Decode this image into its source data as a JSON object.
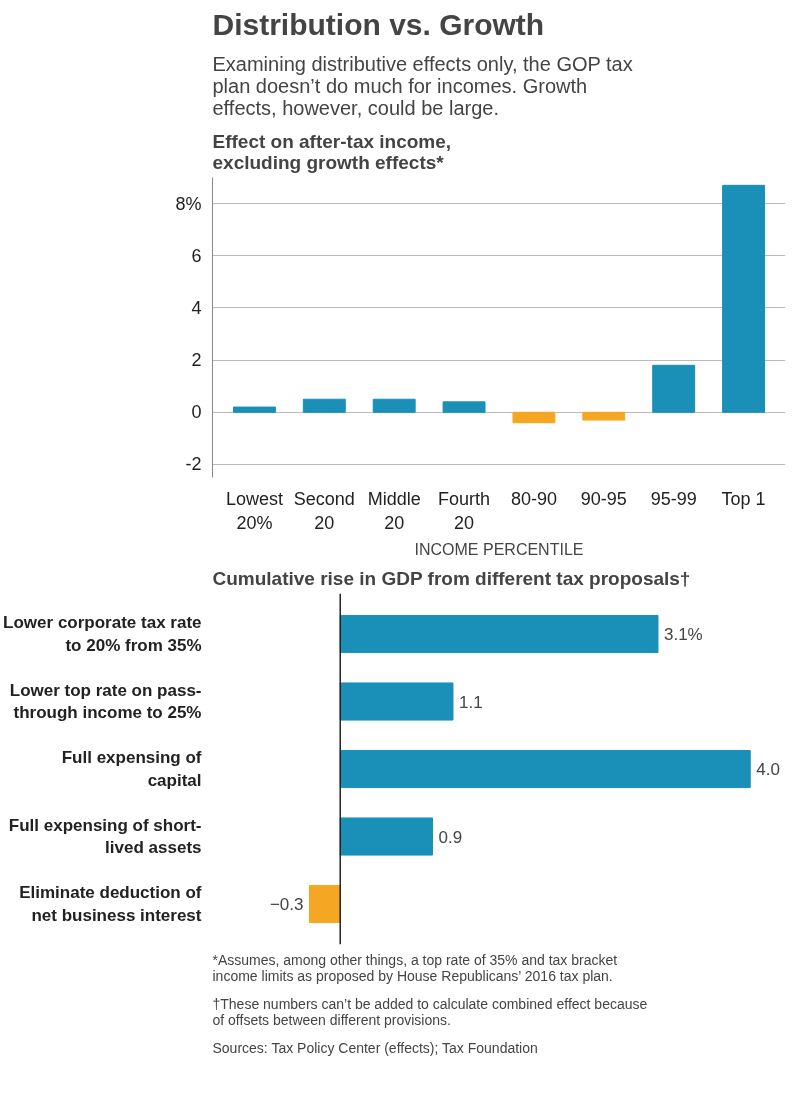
{
  "chart_data": [
    {
      "type": "bar",
      "title": "Distribution vs. Growth",
      "subtitle": "Examining distributive effects only, the GOP tax plan doesn’t do much for incomes. Growth effects, however, could be large.",
      "annotations": [
        "Effect on after-tax income, excluding growth effects*"
      ],
      "categories": [
        "Lowest 20%",
        "Second 20",
        "Middle 20",
        "Fourth 20",
        "80-90",
        "90-95",
        "95-99",
        "Top 1"
      ],
      "values": [
        0.2,
        0.5,
        0.5,
        0.4,
        -0.4,
        -0.3,
        1.8,
        8.7
      ],
      "colors": [
        "#1a8fb8",
        "#1a8fb8",
        "#1a8fb8",
        "#1a8fb8",
        "#f5a623",
        "#f5a623",
        "#1a8fb8",
        "#1a8fb8"
      ],
      "xlabel": "INCOME PERCENTILE",
      "ylim": [
        -2.5,
        9
      ],
      "yticks": [
        -2,
        0,
        2,
        4,
        6,
        {
          "value": 8,
          "label": "8%"
        }
      ],
      "grid": "y"
    },
    {
      "type": "bar",
      "orientation": "horizontal",
      "title": "Cumulative rise in GDP from different tax proposals†",
      "categories": [
        "Lower corporate tax rate to 20% from 35%",
        "Lower top rate on pass-through income to 25%",
        "Full expensing of capital",
        "Full expensing of short-lived assets",
        "Eliminate deduction of net business interest"
      ],
      "values": [
        3.1,
        1.1,
        4.0,
        0.9,
        -0.3
      ],
      "colors": [
        "#1a8fb8",
        "#1a8fb8",
        "#1a8fb8",
        "#1a8fb8",
        "#f5a623"
      ],
      "value_labels": [
        "3.1%",
        "1.1",
        "4.0",
        "0.9",
        "−0.3"
      ],
      "annotations": [
        "*Assumes, among other things, a top rate of 35% and tax bracket income limits as proposed by House Republicans’ 2016 tax plan.",
        "†These numbers can’t be added to calculate combined effect because of offsets between different provisions.",
        "Sources: Tax Policy Center (effects); Tax Foundation"
      ]
    }
  ]
}
